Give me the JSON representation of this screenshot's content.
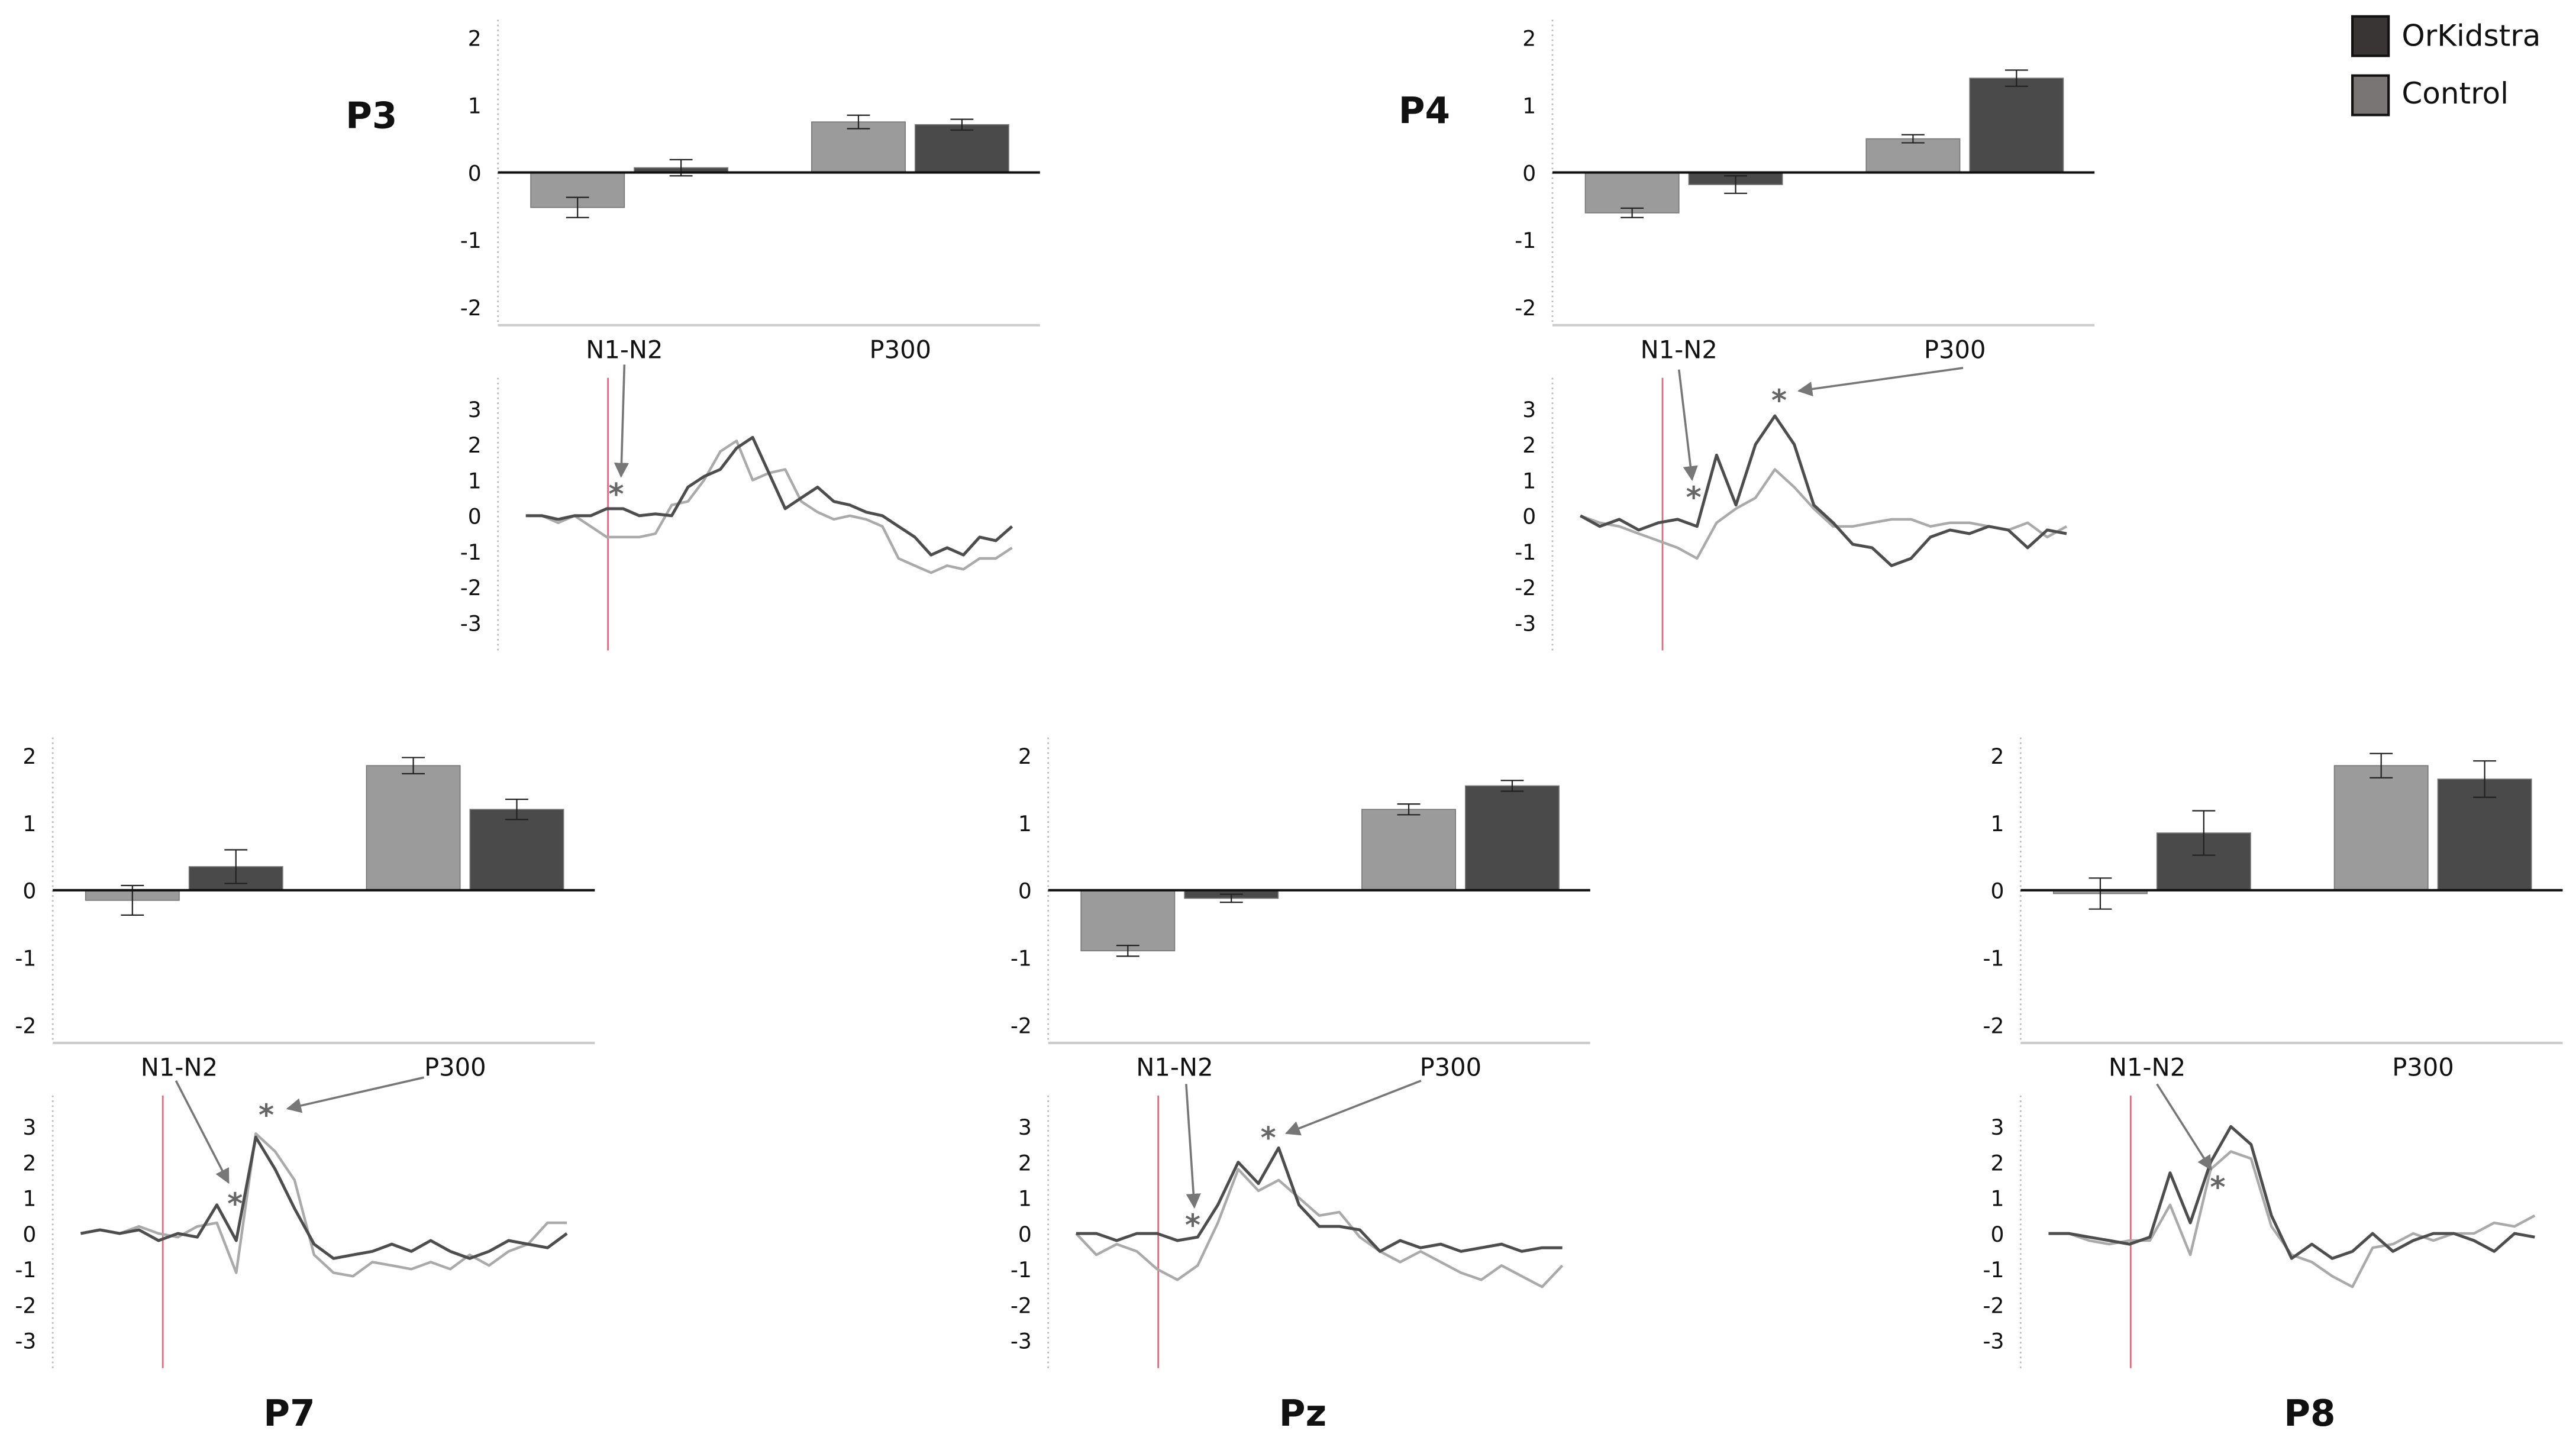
{
  "chart_data": {
    "type": "bar+line",
    "legend": {
      "placement": "top-right",
      "entries": [
        {
          "name": "OrKidstra",
          "color": "#3a3535"
        },
        {
          "name": "Control",
          "color": "#7a7575"
        }
      ]
    },
    "colors": {
      "control_bar": "#9b9b9b",
      "orkidstra_bar": "#4a4a4a",
      "control_line": "#aaaaaa",
      "orkidstra_line": "#4d4d4d",
      "onset_line": "#d07080",
      "annotation": "#777777"
    },
    "bar_yticks": [
      "2",
      "1",
      "0",
      "-1",
      "-2"
    ],
    "bar_ylim": [
      -2.3,
      2.2
    ],
    "erp_yticks": [
      "3",
      "2",
      "1",
      "0",
      "-1",
      "-2",
      "-3"
    ],
    "erp_ylim": [
      -3.8,
      3.8
    ],
    "categories": [
      "N1-N2",
      "P300"
    ],
    "annotation_symbol": "*",
    "panels": [
      {
        "title": "P3",
        "bars": {
          "control": [
            -0.52,
            0.75
          ],
          "orkidstra": [
            0.07,
            0.71
          ],
          "control_err": [
            0.15,
            0.1
          ],
          "orkidstra_err": [
            0.12,
            0.08
          ]
        },
        "erp": {
          "orkidstra": [
            0,
            0,
            -0.1,
            0,
            0,
            0.2,
            0.2,
            0,
            0.05,
            0,
            0.8,
            1.1,
            1.3,
            1.9,
            2.2,
            1.2,
            0.2,
            0.5,
            0.8,
            0.4,
            0.3,
            0.1,
            0,
            -0.3,
            -0.6,
            -1.1,
            -0.9,
            -1.1,
            -0.6,
            -0.7,
            -0.3
          ],
          "control": [
            0,
            0,
            -0.2,
            0,
            -0.3,
            -0.6,
            -0.6,
            -0.6,
            -0.5,
            0.3,
            0.4,
            1.0,
            1.8,
            2.1,
            1.0,
            1.2,
            1.3,
            0.4,
            0.1,
            -0.1,
            0,
            -0.1,
            -0.3,
            -1.2,
            -1.4,
            -1.6,
            -1.4,
            -1.5,
            -1.2,
            -1.2,
            -0.9
          ]
        },
        "significant": [
          "N1-N2"
        ]
      },
      {
        "title": "P4",
        "bars": {
          "control": [
            -0.6,
            0.5
          ],
          "orkidstra": [
            -0.18,
            1.4
          ],
          "control_err": [
            0.07,
            0.06
          ],
          "orkidstra_err": [
            0.13,
            0.12
          ]
        },
        "erp": {
          "orkidstra": [
            0,
            -0.3,
            -0.1,
            -0.4,
            -0.2,
            -0.1,
            -0.3,
            1.7,
            0.3,
            2.0,
            2.8,
            2.0,
            0.3,
            -0.2,
            -0.8,
            -0.9,
            -1.4,
            -1.2,
            -0.6,
            -0.4,
            -0.5,
            -0.3,
            -0.4,
            -0.9,
            -0.4,
            -0.5
          ],
          "control": [
            0,
            -0.2,
            -0.3,
            -0.5,
            -0.7,
            -0.9,
            -1.2,
            -0.2,
            0.2,
            0.5,
            1.3,
            0.8,
            0.2,
            -0.3,
            -0.3,
            -0.2,
            -0.1,
            -0.1,
            -0.3,
            -0.2,
            -0.2,
            -0.3,
            -0.4,
            -0.2,
            -0.6,
            -0.3
          ]
        },
        "significant": [
          "N1-N2",
          "P300"
        ]
      },
      {
        "title": "P7",
        "bars": {
          "control": [
            -0.15,
            1.85
          ],
          "orkidstra": [
            0.35,
            1.2
          ],
          "control_err": [
            0.22,
            0.12
          ],
          "orkidstra_err": [
            0.25,
            0.15
          ]
        },
        "erp": {
          "orkidstra": [
            0,
            0.1,
            0,
            0.1,
            -0.2,
            0,
            -0.1,
            0.8,
            -0.2,
            2.7,
            1.8,
            0.7,
            -0.3,
            -0.7,
            -0.6,
            -0.5,
            -0.3,
            -0.5,
            -0.2,
            -0.5,
            -0.7,
            -0.5,
            -0.2,
            -0.3,
            -0.4,
            0
          ],
          "control": [
            0,
            0.1,
            0,
            0.2,
            0,
            -0.1,
            0.2,
            0.3,
            -1.1,
            2.8,
            2.3,
            1.5,
            -0.6,
            -1.1,
            -1.2,
            -0.8,
            -0.9,
            -1.0,
            -0.8,
            -1.0,
            -0.6,
            -0.9,
            -0.5,
            -0.3,
            0.3,
            0.3
          ]
        },
        "significant": [
          "N1-N2",
          "P300"
        ]
      },
      {
        "title": "Pz",
        "bars": {
          "control": [
            -0.9,
            1.2
          ],
          "orkidstra": [
            -0.12,
            1.55
          ],
          "control_err": [
            0.08,
            0.08
          ],
          "orkidstra_err": [
            0.06,
            0.08
          ]
        },
        "erp": {
          "orkidstra": [
            0,
            0,
            -0.2,
            0,
            0,
            -0.2,
            -0.1,
            0.8,
            2.0,
            1.4,
            2.4,
            0.8,
            0.2,
            0.2,
            0.1,
            -0.5,
            -0.2,
            -0.4,
            -0.3,
            -0.5,
            -0.4,
            -0.3,
            -0.5,
            -0.4,
            -0.4
          ],
          "control": [
            0,
            -0.6,
            -0.3,
            -0.5,
            -1.0,
            -1.3,
            -0.9,
            0.3,
            1.8,
            1.2,
            1.5,
            1.0,
            0.5,
            0.6,
            -0.1,
            -0.5,
            -0.8,
            -0.5,
            -0.8,
            -1.1,
            -1.3,
            -0.9,
            -1.2,
            -1.5,
            -0.9
          ]
        },
        "significant": [
          "N1-N2",
          "P300"
        ]
      },
      {
        "title": "P8",
        "bars": {
          "control": [
            -0.05,
            1.85
          ],
          "orkidstra": [
            0.85,
            1.65
          ],
          "control_err": [
            0.23,
            0.18
          ],
          "orkidstra_err": [
            0.33,
            0.27
          ]
        },
        "erp": {
          "orkidstra": [
            0,
            0,
            -0.1,
            -0.2,
            -0.3,
            -0.1,
            1.7,
            0.3,
            2.0,
            3.0,
            2.5,
            0.5,
            -0.7,
            -0.3,
            -0.7,
            -0.5,
            0,
            -0.5,
            -0.2,
            0,
            0,
            -0.2,
            -0.5,
            0,
            -0.1
          ],
          "control": [
            0,
            0,
            -0.2,
            -0.3,
            -0.2,
            -0.2,
            0.8,
            -0.6,
            1.8,
            2.3,
            2.1,
            0.2,
            -0.6,
            -0.8,
            -1.2,
            -1.5,
            -0.4,
            -0.3,
            0,
            -0.2,
            0,
            0,
            0.3,
            0.2,
            0.5
          ]
        },
        "significant": [
          "N1-N2"
        ]
      }
    ]
  }
}
